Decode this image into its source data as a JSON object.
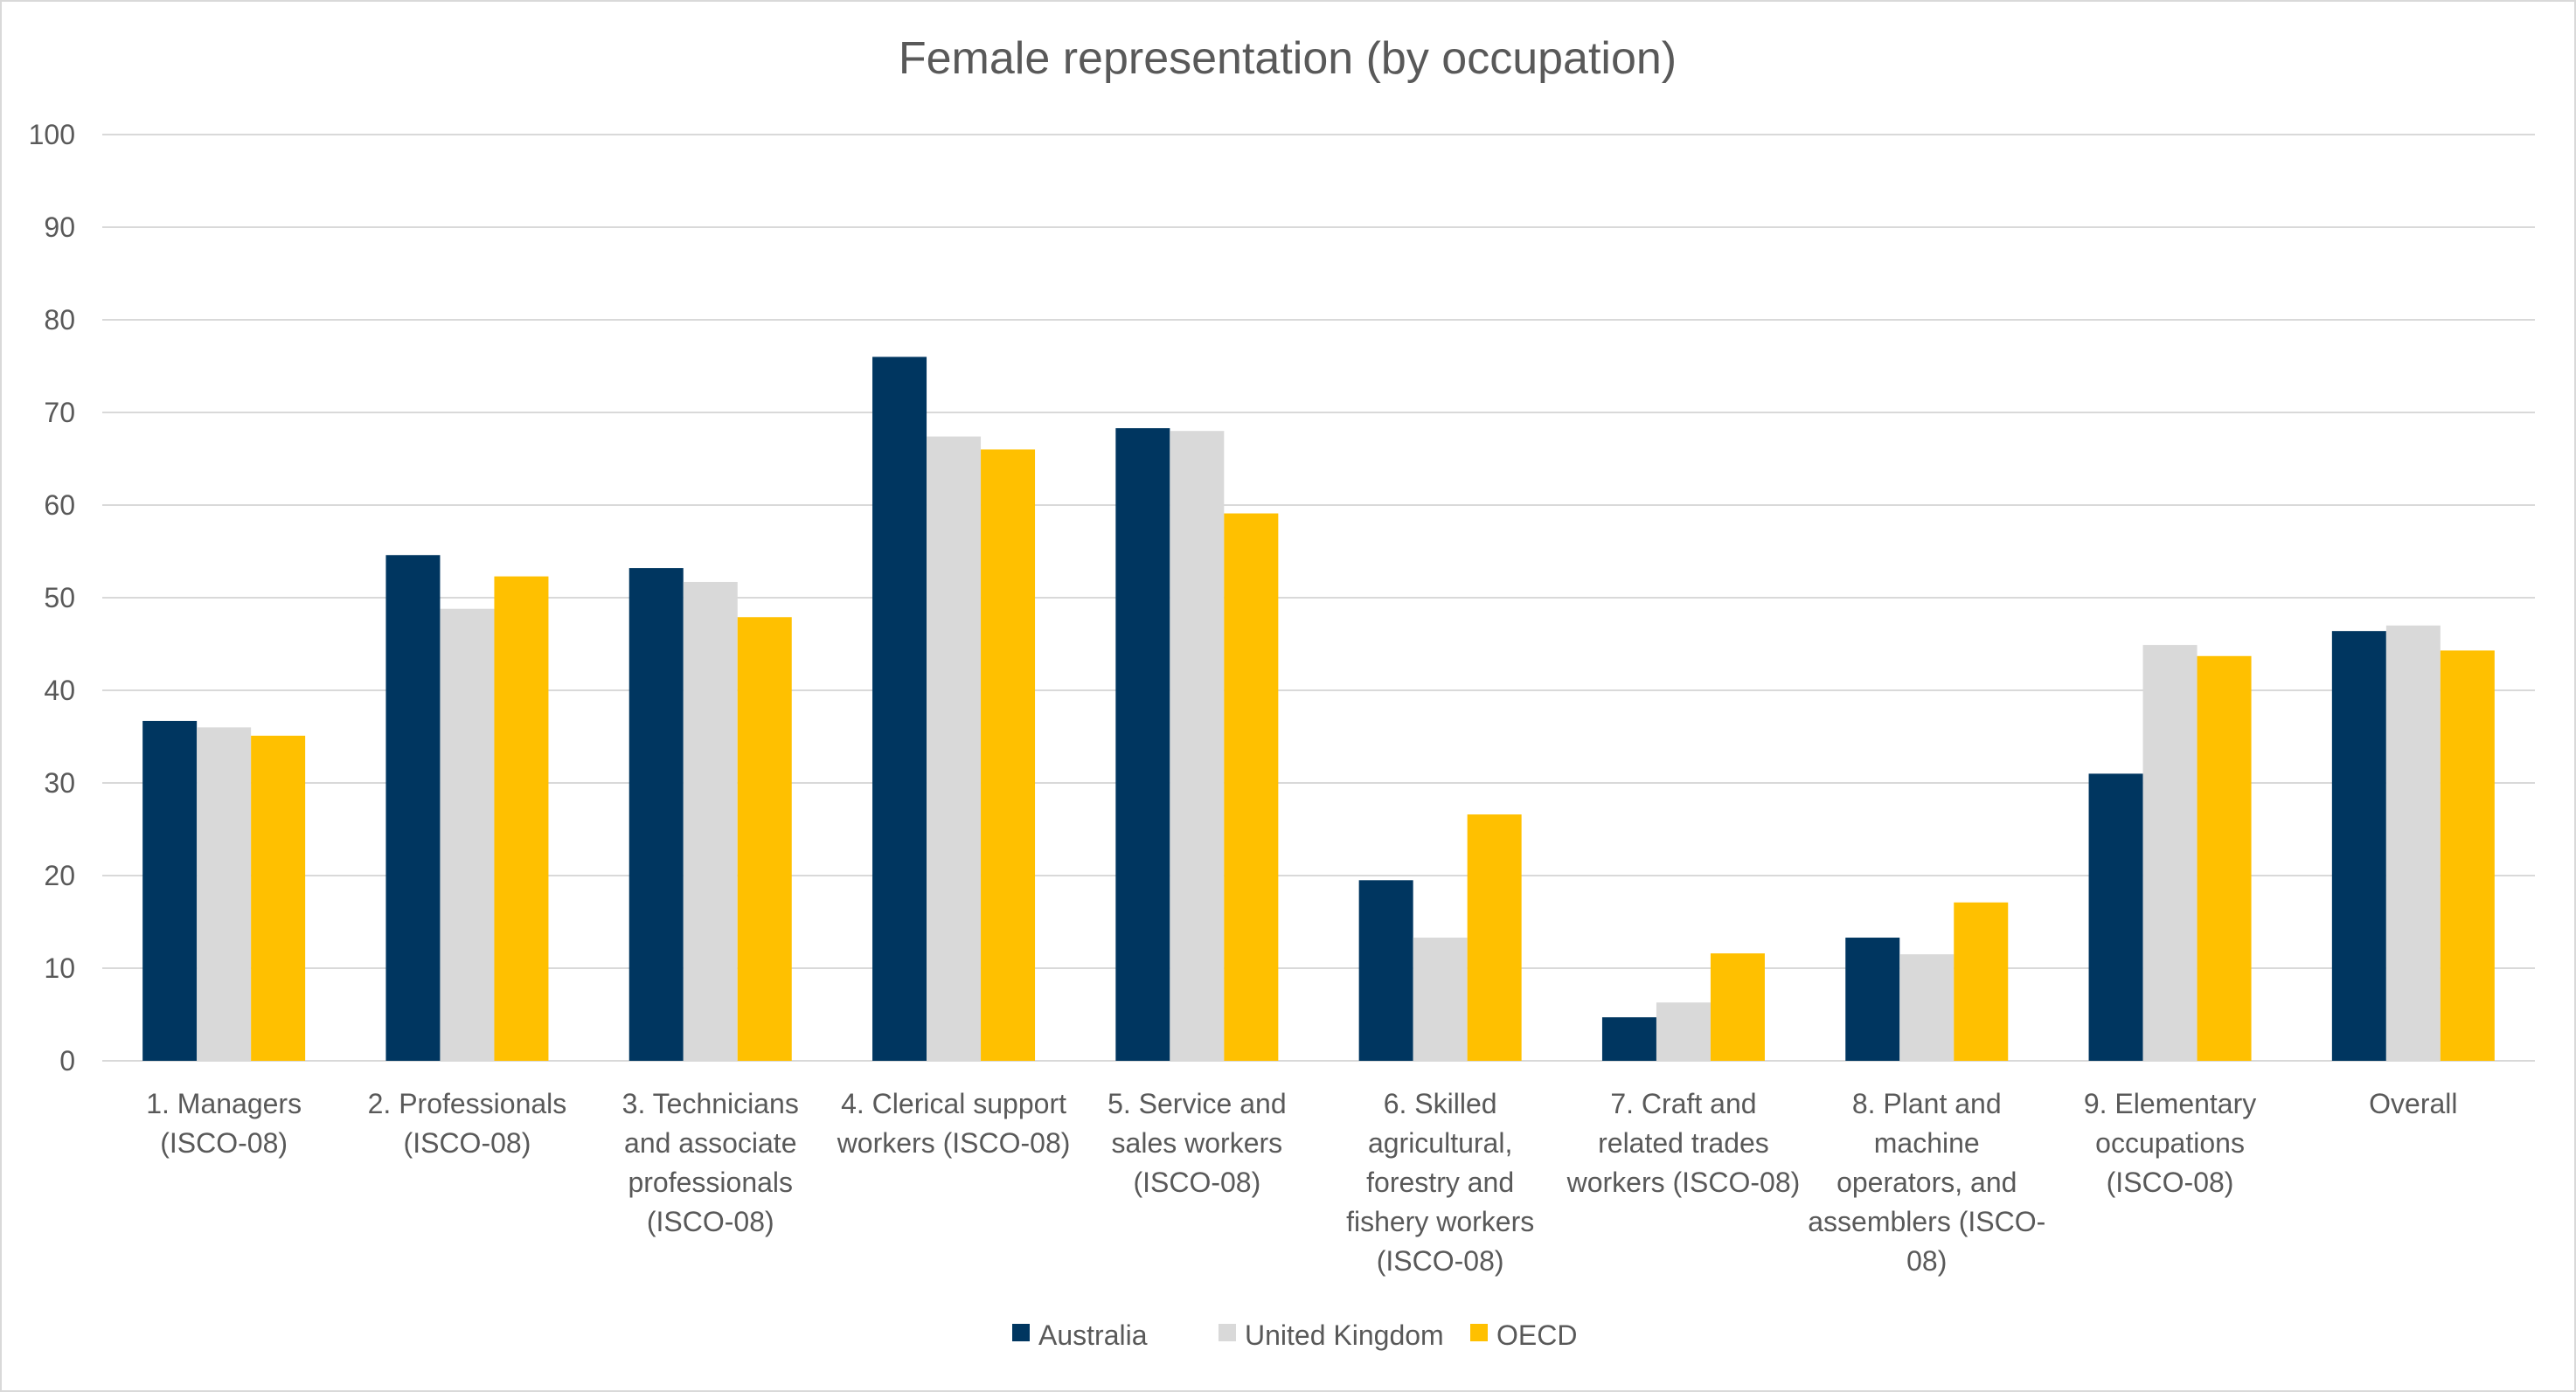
{
  "chart_data": {
    "type": "bar",
    "title": "Female representation (by occupation)",
    "xlabel": "",
    "ylabel": "",
    "ylim": [
      0,
      100
    ],
    "yticks": [
      0,
      10,
      20,
      30,
      40,
      50,
      60,
      70,
      80,
      90,
      100
    ],
    "grid": true,
    "legend_position": "bottom",
    "categories": [
      [
        "1. Managers",
        "(ISCO-08)"
      ],
      [
        "2. Professionals",
        "(ISCO-08)"
      ],
      [
        "3. Technicians",
        "and associate",
        "professionals",
        "(ISCO-08)"
      ],
      [
        "4. Clerical support",
        "workers (ISCO-08)"
      ],
      [
        "5. Service and",
        "sales workers",
        "(ISCO-08)"
      ],
      [
        "6. Skilled",
        "agricultural,",
        "forestry and",
        "fishery workers",
        "(ISCO-08)"
      ],
      [
        "7. Craft and",
        "related trades",
        "workers (ISCO-08)"
      ],
      [
        "8. Plant and",
        "machine",
        "operators, and",
        "assemblers (ISCO-",
        "08)"
      ],
      [
        "9. Elementary",
        "occupations",
        "(ISCO-08)"
      ],
      [
        "Overall"
      ]
    ],
    "series": [
      {
        "name": "Australia",
        "color": "#003660",
        "values": [
          36.7,
          54.6,
          53.2,
          76.0,
          68.3,
          19.5,
          4.7,
          13.3,
          31.0,
          46.4
        ]
      },
      {
        "name": "United Kingdom",
        "color": "#D9D9D9",
        "values": [
          36.0,
          48.8,
          51.7,
          67.4,
          68.0,
          13.3,
          6.3,
          11.5,
          44.9,
          47.0
        ]
      },
      {
        "name": "OECD",
        "color": "#FFC000",
        "values": [
          35.1,
          52.3,
          47.9,
          66.0,
          59.1,
          26.6,
          11.6,
          17.1,
          43.7,
          44.3
        ]
      }
    ]
  }
}
